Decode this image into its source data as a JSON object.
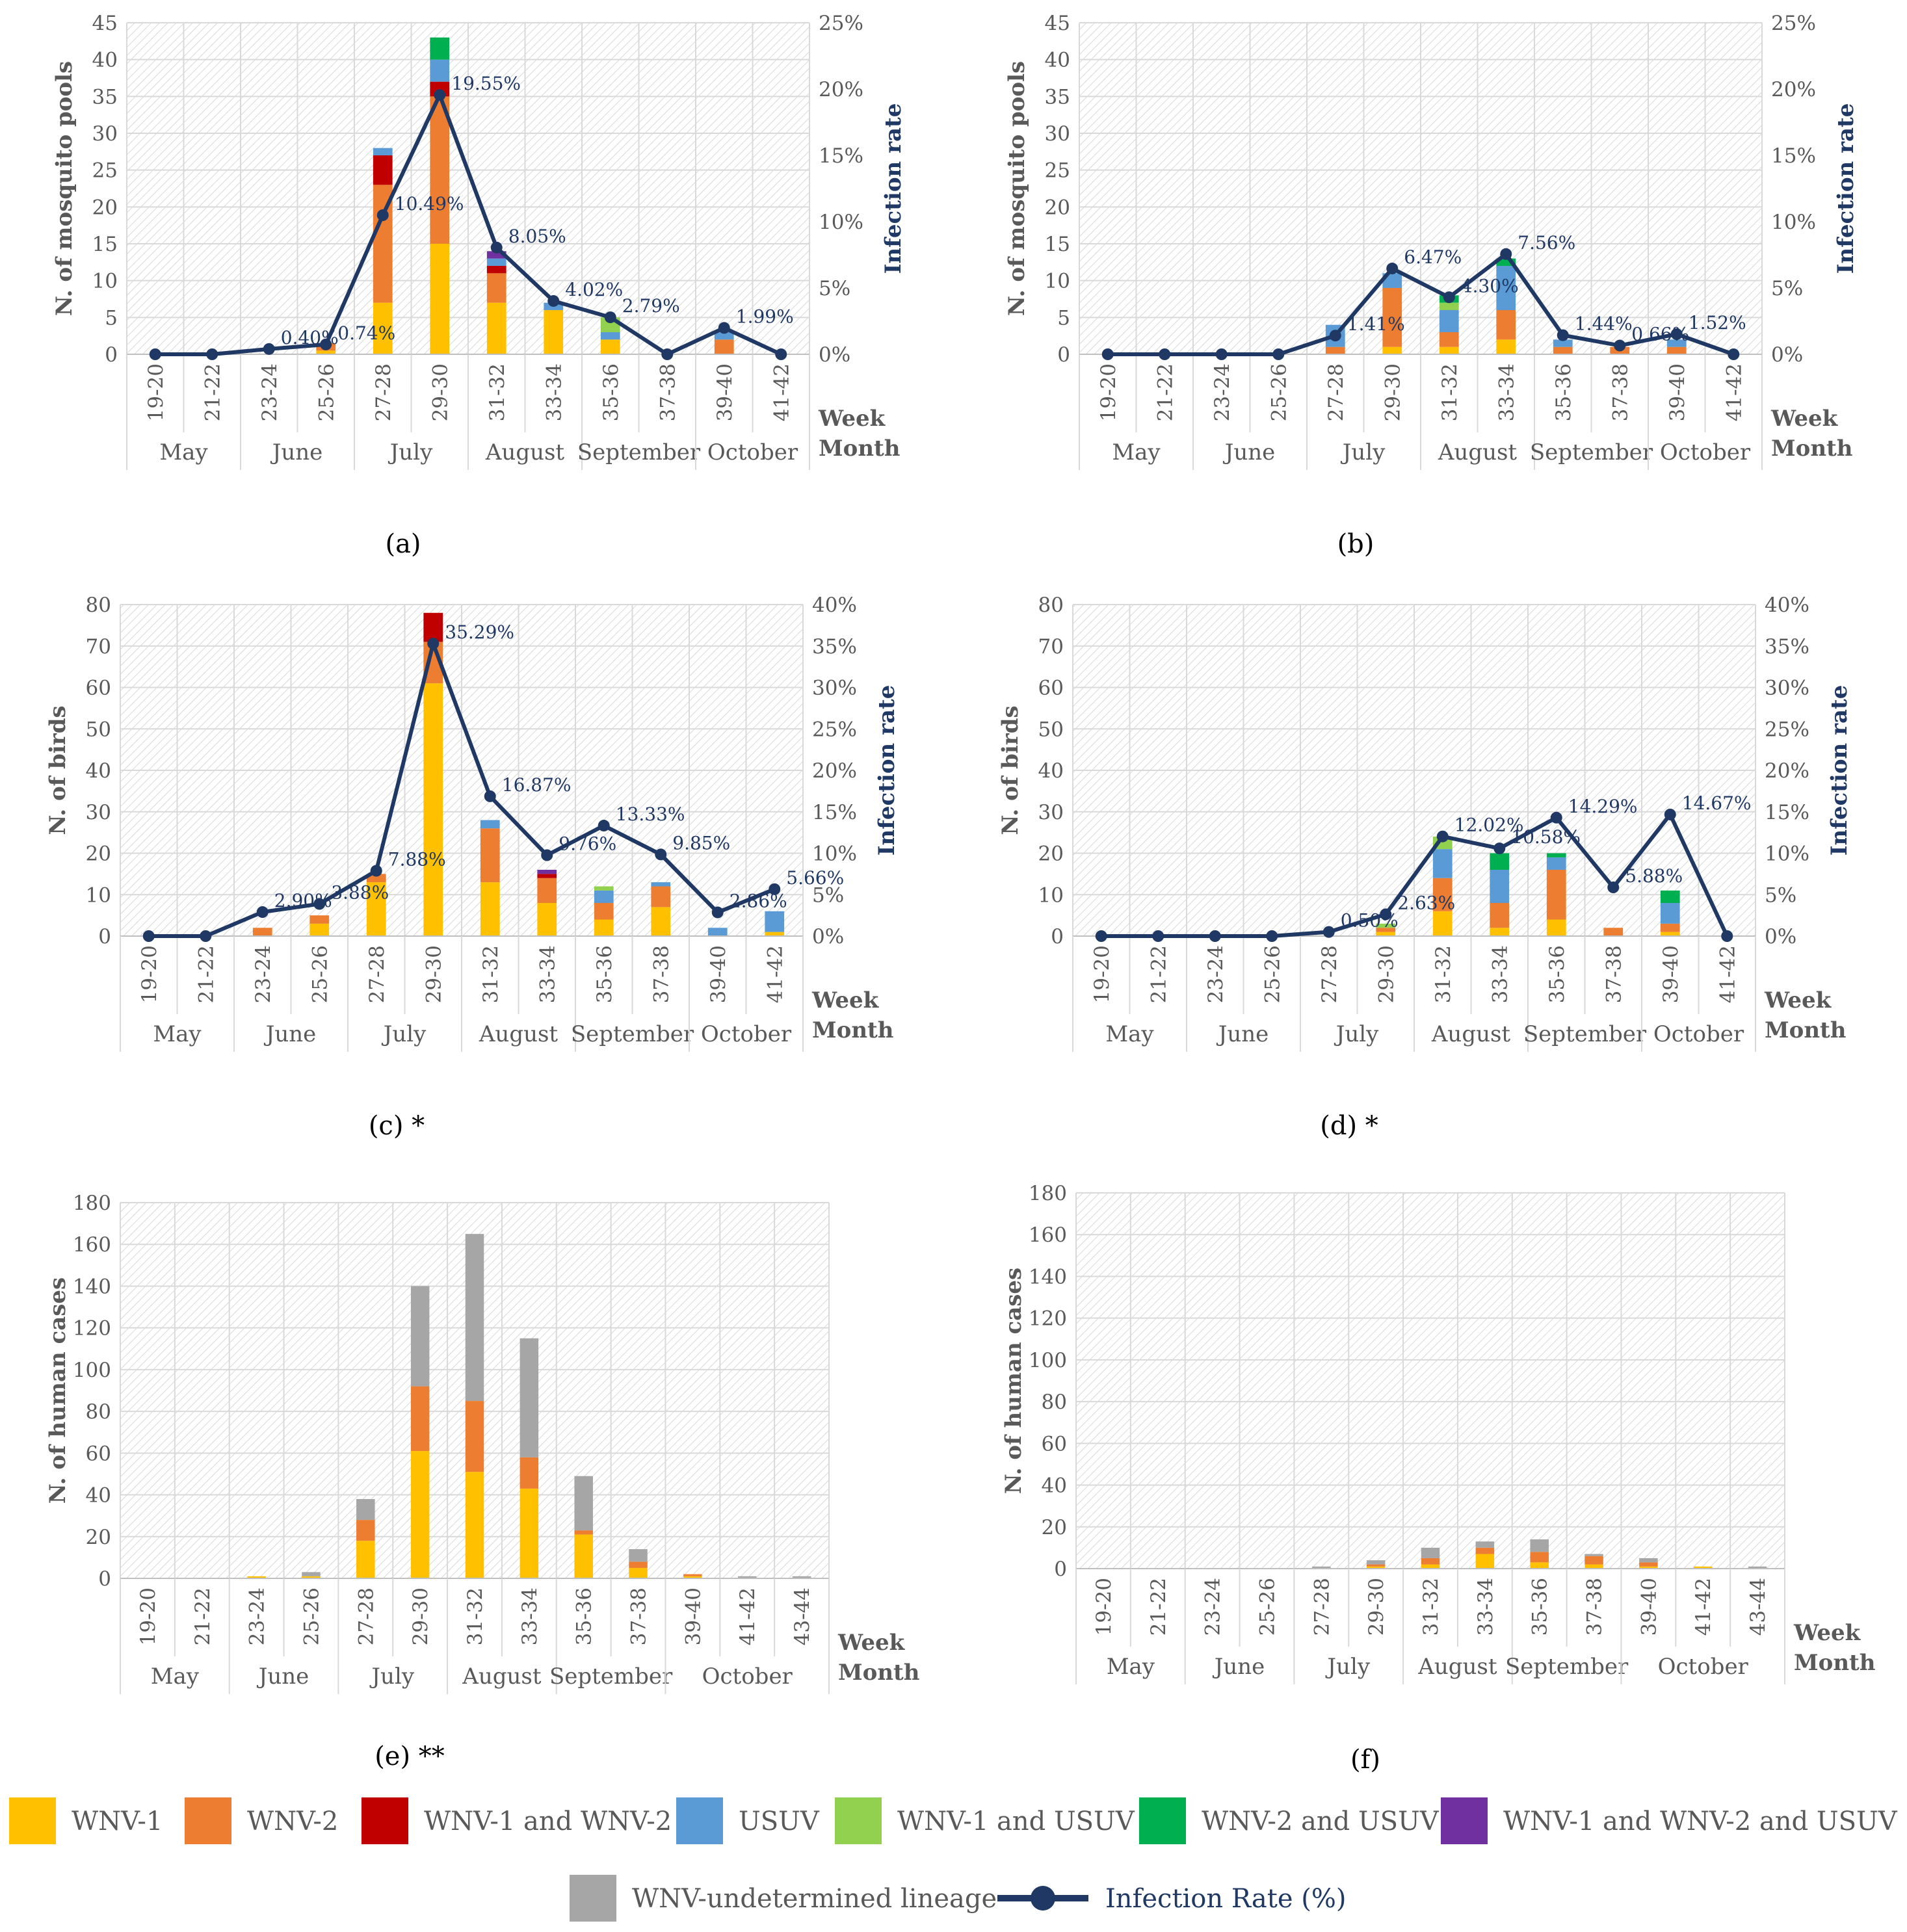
{
  "colors": {
    "WNV-1": "#FFC000",
    "WNV-2": "#ED7D31",
    "WNV-1 and WNV-2": "#C00000",
    "USUV": "#5B9BD5",
    "WNV-1 and USUV": "#92D050",
    "WNV-2 and USUV": "#00B050",
    "WNV-1 and WNV-2 and USUV": "#7030A0",
    "WNV-undetermined lineage": "#A6A6A6",
    "line": "#1F3864",
    "grid": "#D9D9D9",
    "hatch": "#BFBFBF"
  },
  "legend": {
    "items": [
      {
        "label": "WNV-1",
        "color": "#FFC000"
      },
      {
        "label": "WNV-2",
        "color": "#ED7D31"
      },
      {
        "label": "WNV-1 and WNV-2",
        "color": "#C00000"
      },
      {
        "label": "USUV",
        "color": "#5B9BD5"
      },
      {
        "label": "WNV-1 and USUV",
        "color": "#92D050"
      },
      {
        "label": "WNV-2 and USUV",
        "color": "#00B050"
      },
      {
        "label": "WNV-1 and WNV-2 and USUV",
        "color": "#7030A0"
      },
      {
        "label": "WNV-undetermined lineage",
        "color": "#A6A6A6"
      }
    ],
    "line_label": "Infection Rate (%)"
  },
  "chart_data": [
    {
      "id": "a",
      "type": "bar+line",
      "panel_label": "(a)",
      "suffix": "",
      "ylabel": "N. of mosquito pools",
      "y2label": "Infection rate",
      "xlabel_week": "Week",
      "xlabel_month": "Month",
      "ylim": [
        0,
        45
      ],
      "yticks": [
        0,
        5,
        10,
        15,
        20,
        25,
        30,
        35,
        40,
        45
      ],
      "y2lim": [
        0,
        25
      ],
      "y2ticks": [
        "0%",
        "5%",
        "10%",
        "15%",
        "20%",
        "25%"
      ],
      "weeks": [
        "19-20",
        "21-22",
        "23-24",
        "25-26",
        "27-28",
        "29-30",
        "31-32",
        "33-34",
        "35-36",
        "37-38",
        "39-40",
        "41-42"
      ],
      "months": [
        {
          "name": "May",
          "span": 2
        },
        {
          "name": "June",
          "span": 2
        },
        {
          "name": "July",
          "span": 2
        },
        {
          "name": "August",
          "span": 2
        },
        {
          "name": "September",
          "span": 2
        },
        {
          "name": "October",
          "span": 2
        }
      ],
      "series": [
        {
          "name": "WNV-1",
          "values": [
            0,
            0,
            0,
            0.5,
            7,
            15,
            7,
            6,
            2,
            0,
            0,
            0
          ]
        },
        {
          "name": "WNV-2",
          "values": [
            0,
            0,
            0,
            1,
            16,
            20,
            4,
            0,
            0,
            0,
            2,
            0
          ]
        },
        {
          "name": "WNV-1 and WNV-2",
          "values": [
            0,
            0,
            0,
            0,
            4,
            2,
            1,
            0,
            0,
            0,
            0,
            0
          ]
        },
        {
          "name": "USUV",
          "values": [
            0,
            0,
            0,
            0,
            1,
            3,
            1,
            1,
            1,
            0,
            1,
            0
          ]
        },
        {
          "name": "WNV-1 and USUV",
          "values": [
            0,
            0,
            0,
            0,
            0,
            0,
            0,
            0,
            2,
            0,
            0,
            0
          ]
        },
        {
          "name": "WNV-2 and USUV",
          "values": [
            0,
            0,
            0,
            0,
            0,
            3,
            0,
            0,
            0,
            0,
            0,
            0
          ]
        },
        {
          "name": "WNV-1 and WNV-2 and USUV",
          "values": [
            0,
            0,
            0,
            0,
            0,
            0,
            1,
            0,
            0,
            0,
            0,
            0
          ]
        }
      ],
      "rate": [
        0,
        0,
        0.4,
        0.74,
        10.49,
        19.55,
        8.05,
        4.02,
        2.79,
        0,
        1.99,
        0
      ],
      "rate_labels": [
        "",
        "",
        "0.40%",
        "0.74%",
        "10.49%",
        "19.55%",
        "8.05%",
        "4.02%",
        "2.79%",
        "",
        "1.99%",
        ""
      ]
    },
    {
      "id": "b",
      "type": "bar+line",
      "panel_label": "(b)",
      "suffix": "",
      "ylabel": "N. of mosquito pools",
      "y2label": "Infection rate",
      "xlabel_week": "Week",
      "xlabel_month": "Month",
      "ylim": [
        0,
        45
      ],
      "yticks": [
        0,
        5,
        10,
        15,
        20,
        25,
        30,
        35,
        40,
        45
      ],
      "y2lim": [
        0,
        25
      ],
      "y2ticks": [
        "0%",
        "5%",
        "10%",
        "15%",
        "20%",
        "25%"
      ],
      "weeks": [
        "19-20",
        "21-22",
        "23-24",
        "25-26",
        "27-28",
        "29-30",
        "31-32",
        "33-34",
        "35-36",
        "37-38",
        "39-40",
        "41-42"
      ],
      "months": [
        {
          "name": "May",
          "span": 2
        },
        {
          "name": "June",
          "span": 2
        },
        {
          "name": "July",
          "span": 2
        },
        {
          "name": "August",
          "span": 2
        },
        {
          "name": "September",
          "span": 2
        },
        {
          "name": "October",
          "span": 2
        }
      ],
      "series": [
        {
          "name": "WNV-1",
          "values": [
            0,
            0,
            0,
            0,
            0,
            1,
            1,
            2,
            0,
            0,
            0,
            0
          ]
        },
        {
          "name": "WNV-2",
          "values": [
            0,
            0,
            0,
            0,
            1,
            8,
            2,
            4,
            1,
            1,
            1,
            0
          ]
        },
        {
          "name": "USUV",
          "values": [
            0,
            0,
            0,
            0,
            3,
            2,
            3,
            6,
            1,
            0,
            1,
            0
          ]
        },
        {
          "name": "WNV-1 and USUV",
          "values": [
            0,
            0,
            0,
            0,
            0,
            0,
            1,
            0,
            0,
            0,
            0,
            0
          ]
        },
        {
          "name": "WNV-2 and USUV",
          "values": [
            0,
            0,
            0,
            0,
            0,
            0,
            1,
            1,
            0,
            0,
            0,
            0
          ]
        }
      ],
      "rate": [
        0,
        0,
        0,
        0,
        1.41,
        6.47,
        4.3,
        7.56,
        1.44,
        0.66,
        1.52,
        0
      ],
      "rate_labels": [
        "",
        "",
        "",
        "",
        "1.41%",
        "6.47%",
        "4.30%",
        "7.56%",
        "1.44%",
        "0.66%",
        "1.52%",
        ""
      ]
    },
    {
      "id": "c",
      "type": "bar+line",
      "panel_label": "(c)",
      "suffix": " *",
      "ylabel": "N. of birds",
      "y2label": "Infection rate",
      "xlabel_week": "Week",
      "xlabel_month": "Month",
      "ylim": [
        0,
        80
      ],
      "yticks": [
        0,
        10,
        20,
        30,
        40,
        50,
        60,
        70,
        80
      ],
      "y2lim": [
        0,
        40
      ],
      "y2ticks": [
        "0%",
        "5%",
        "10%",
        "15%",
        "20%",
        "25%",
        "30%",
        "35%",
        "40%"
      ],
      "weeks": [
        "19-20",
        "21-22",
        "23-24",
        "25-26",
        "27-28",
        "29-30",
        "31-32",
        "33-34",
        "35-36",
        "37-38",
        "39-40",
        "41-42"
      ],
      "months": [
        {
          "name": "May",
          "span": 2
        },
        {
          "name": "June",
          "span": 2
        },
        {
          "name": "July",
          "span": 2
        },
        {
          "name": "August",
          "span": 2
        },
        {
          "name": "September",
          "span": 2
        },
        {
          "name": "October",
          "span": 2
        }
      ],
      "series": [
        {
          "name": "WNV-1",
          "values": [
            0,
            0,
            0,
            3,
            13,
            61,
            13,
            8,
            4,
            7,
            0,
            1
          ]
        },
        {
          "name": "WNV-2",
          "values": [
            0,
            0,
            2,
            2,
            2,
            10,
            13,
            6,
            4,
            5,
            0,
            0
          ]
        },
        {
          "name": "WNV-1 and WNV-2",
          "values": [
            0,
            0,
            0,
            0,
            0,
            7,
            0,
            1,
            0,
            0,
            0,
            0
          ]
        },
        {
          "name": "USUV",
          "values": [
            0,
            0,
            0,
            0,
            0,
            0,
            2,
            0,
            3,
            1,
            2,
            5
          ]
        },
        {
          "name": "WNV-1 and USUV",
          "values": [
            0,
            0,
            0,
            0,
            0,
            0,
            0,
            0,
            1,
            0,
            0,
            0
          ]
        },
        {
          "name": "WNV-1 and WNV-2 and USUV",
          "values": [
            0,
            0,
            0,
            0,
            0,
            0,
            0,
            1,
            0,
            0,
            0,
            0
          ]
        }
      ],
      "rate": [
        0,
        0,
        2.9,
        3.88,
        7.88,
        35.29,
        16.87,
        9.76,
        13.33,
        9.85,
        2.86,
        5.66
      ],
      "rate_labels": [
        "",
        "",
        "2.90%",
        "3.88%",
        "7.88%",
        "35.29%",
        "16.87%",
        "9.76%",
        "13.33%",
        "9.85%",
        "2.86%",
        "5.66%"
      ]
    },
    {
      "id": "d",
      "type": "bar+line",
      "panel_label": "(d)",
      "suffix": " *",
      "ylabel": "N. of birds",
      "y2label": "Infection rate",
      "xlabel_week": "Week",
      "xlabel_month": "Month",
      "ylim": [
        0,
        80
      ],
      "yticks": [
        0,
        10,
        20,
        30,
        40,
        50,
        60,
        70,
        80
      ],
      "y2lim": [
        0,
        40
      ],
      "y2ticks": [
        "0%",
        "5%",
        "10%",
        "15%",
        "20%",
        "25%",
        "30%",
        "35%",
        "40%"
      ],
      "weeks": [
        "19-20",
        "21-22",
        "23-24",
        "25-26",
        "27-28",
        "29-30",
        "31-32",
        "33-34",
        "35-36",
        "37-38",
        "39-40",
        "41-42"
      ],
      "months": [
        {
          "name": "May",
          "span": 2
        },
        {
          "name": "June",
          "span": 2
        },
        {
          "name": "July",
          "span": 2
        },
        {
          "name": "August",
          "span": 2
        },
        {
          "name": "September",
          "span": 2
        },
        {
          "name": "October",
          "span": 2
        }
      ],
      "series": [
        {
          "name": "WNV-1",
          "values": [
            0,
            0,
            0,
            0,
            0,
            1,
            6,
            2,
            4,
            0,
            1,
            0
          ]
        },
        {
          "name": "WNV-2",
          "values": [
            0,
            0,
            0,
            0,
            0,
            1,
            8,
            6,
            12,
            2,
            2,
            0
          ]
        },
        {
          "name": "USUV",
          "values": [
            0,
            0,
            0,
            0,
            0,
            0,
            7,
            8,
            3,
            0,
            5,
            0
          ]
        },
        {
          "name": "WNV-1 and USUV",
          "values": [
            0,
            0,
            0,
            0,
            0,
            1,
            3,
            0,
            0,
            0,
            0,
            0
          ]
        },
        {
          "name": "WNV-2 and USUV",
          "values": [
            0,
            0,
            0,
            0,
            0,
            0,
            0,
            4,
            1,
            0,
            3,
            0
          ]
        }
      ],
      "rate": [
        0,
        0,
        0,
        0,
        0.5,
        2.63,
        12.02,
        10.58,
        14.29,
        5.88,
        14.67,
        0
      ],
      "rate_labels": [
        "",
        "",
        "",
        "",
        "0.50%",
        "2.63%",
        "12.02%",
        "10.58%",
        "14.29%",
        "5.88%",
        "14.67%",
        ""
      ]
    },
    {
      "id": "e",
      "type": "bar",
      "panel_label": "(e)",
      "suffix": " **",
      "ylabel": "N. of human cases",
      "xlabel_week": "Week",
      "xlabel_month": "Month",
      "ylim": [
        0,
        180
      ],
      "yticks": [
        0,
        20,
        40,
        60,
        80,
        100,
        120,
        140,
        160,
        180
      ],
      "weeks": [
        "19-20",
        "21-22",
        "23-24",
        "25-26",
        "27-28",
        "29-30",
        "31-32",
        "33-34",
        "35-36",
        "37-38",
        "39-40",
        "41-42",
        "43-44"
      ],
      "months": [
        {
          "name": "May",
          "span": 2
        },
        {
          "name": "June",
          "span": 2
        },
        {
          "name": "July",
          "span": 2
        },
        {
          "name": "August",
          "span": 2
        },
        {
          "name": "September",
          "span": 2
        },
        {
          "name": "October",
          "span": 3
        }
      ],
      "series": [
        {
          "name": "WNV-1",
          "values": [
            0,
            0,
            1,
            1,
            18,
            61,
            51,
            43,
            21,
            5,
            1,
            0,
            0
          ]
        },
        {
          "name": "WNV-2",
          "values": [
            0,
            0,
            0,
            0,
            10,
            31,
            34,
            15,
            2,
            3,
            1,
            0,
            0
          ]
        },
        {
          "name": "WNV-undetermined lineage",
          "values": [
            0,
            0,
            0,
            2,
            10,
            48,
            80,
            57,
            26,
            6,
            0,
            1,
            1
          ]
        }
      ]
    },
    {
      "id": "f",
      "type": "bar",
      "panel_label": "(f)",
      "suffix": "",
      "ylabel": "N. of human cases",
      "xlabel_week": "Week",
      "xlabel_month": "Month",
      "ylim": [
        0,
        180
      ],
      "yticks": [
        0,
        20,
        40,
        60,
        80,
        100,
        120,
        140,
        160,
        180
      ],
      "weeks": [
        "19-20",
        "21-22",
        "23-24",
        "25-26",
        "27-28",
        "29-30",
        "31-32",
        "33-34",
        "35-36",
        "37-38",
        "39-40",
        "41-42",
        "43-44"
      ],
      "months": [
        {
          "name": "May",
          "span": 2
        },
        {
          "name": "June",
          "span": 2
        },
        {
          "name": "July",
          "span": 2
        },
        {
          "name": "August",
          "span": 2
        },
        {
          "name": "September",
          "span": 2
        },
        {
          "name": "October",
          "span": 3
        }
      ],
      "series": [
        {
          "name": "WNV-1",
          "values": [
            0,
            0,
            0,
            0,
            0,
            1,
            2,
            7,
            3,
            2,
            1,
            1,
            0
          ]
        },
        {
          "name": "WNV-2",
          "values": [
            0,
            0,
            0,
            0,
            0,
            1,
            3,
            3,
            5,
            4,
            2,
            0,
            0
          ]
        },
        {
          "name": "WNV-undetermined lineage",
          "values": [
            0,
            0,
            0,
            0,
            1,
            2,
            5,
            3,
            6,
            1,
            2,
            0,
            1
          ]
        }
      ]
    }
  ]
}
